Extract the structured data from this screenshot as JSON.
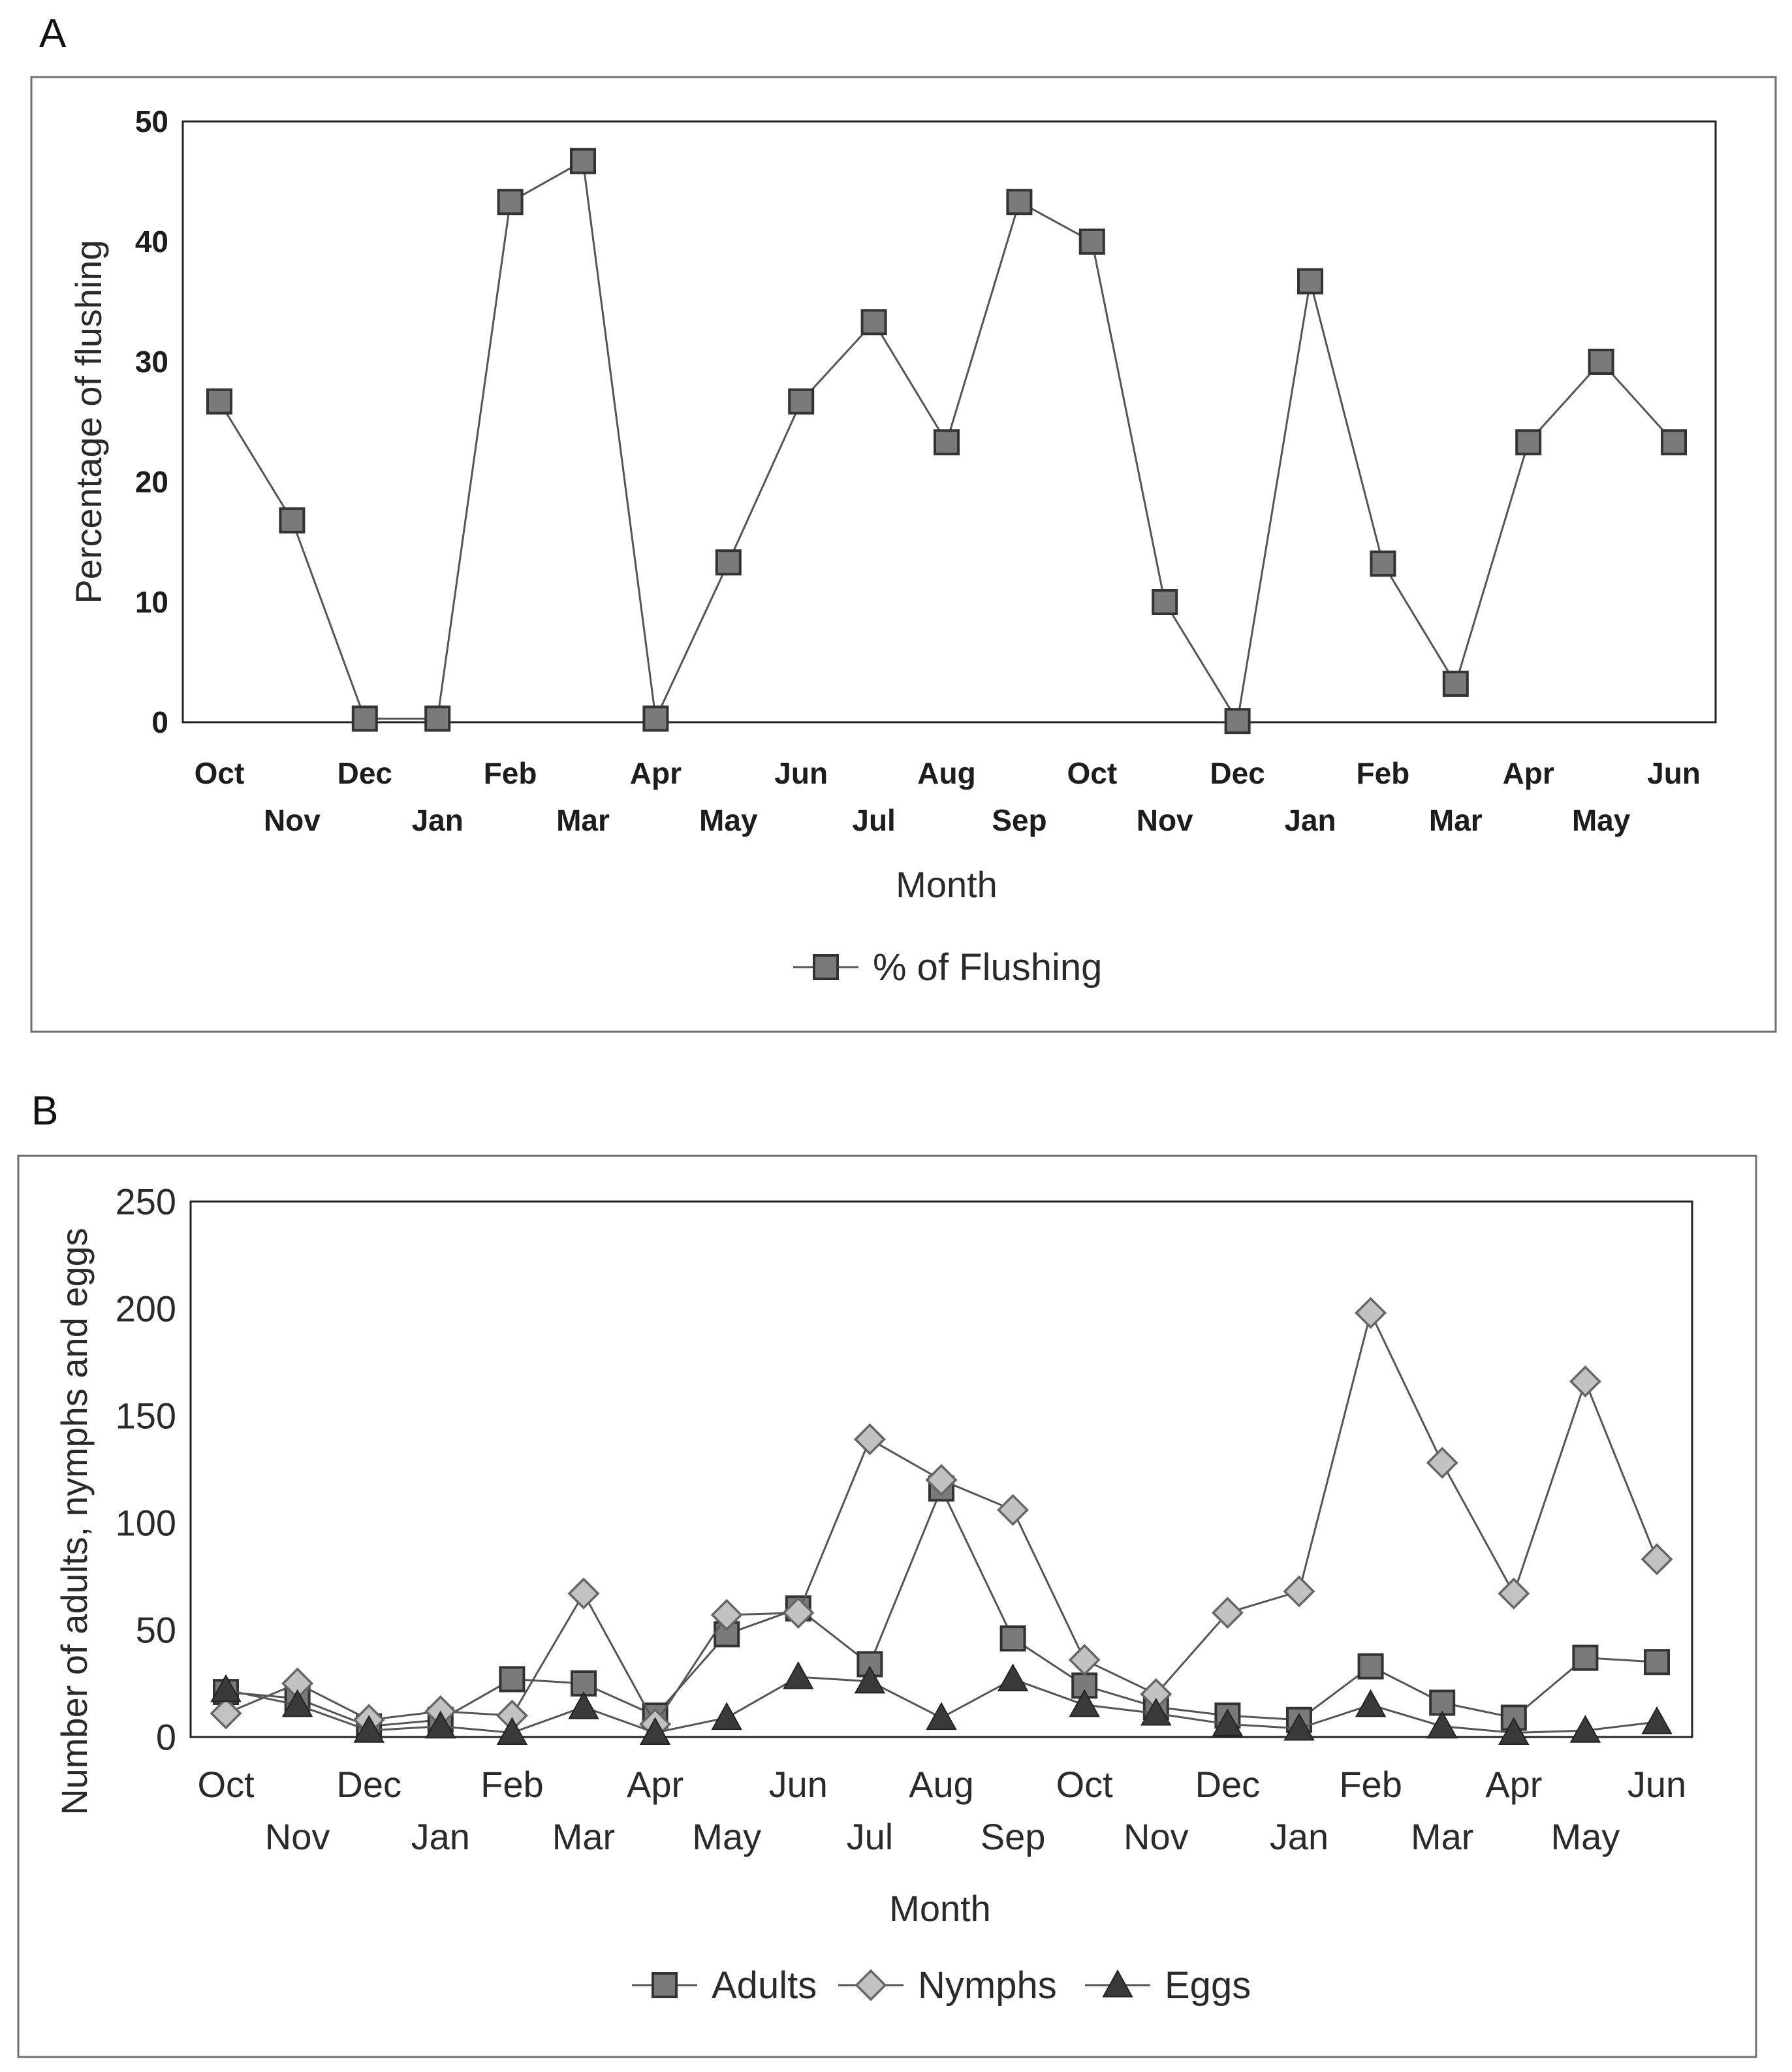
{
  "chart_data": [
    {
      "panel_label": "A",
      "type": "line",
      "title": "",
      "xlabel": "Month",
      "ylabel": "Percentage of flushing",
      "ylim": [
        0,
        50
      ],
      "yticks": [
        "0",
        "10",
        "20",
        "30",
        "40",
        "50"
      ],
      "categories": [
        "Oct",
        "Nov",
        "Dec",
        "Jan",
        "Feb",
        "Mar",
        "Apr",
        "May",
        "Jun",
        "Jul",
        "Aug",
        "Sep",
        "Oct",
        "Nov",
        "Dec",
        "Jan",
        "Feb",
        "Mar",
        "Apr",
        "May",
        "Jun"
      ],
      "legend_position": "bottom-center",
      "series": [
        {
          "name": "% of Flushing",
          "marker": "square",
          "values": [
            26.7,
            16.8,
            0.3,
            0.3,
            43.3,
            46.7,
            0.3,
            13.3,
            26.7,
            33.3,
            23.3,
            43.3,
            40.0,
            10.0,
            0.1,
            36.7,
            13.2,
            3.2,
            23.3,
            30.0,
            23.3
          ]
        }
      ]
    },
    {
      "panel_label": "B",
      "type": "line",
      "title": "",
      "xlabel": "Month",
      "ylabel": "Number of adults, nymphs and eggs",
      "ylim": [
        0,
        250
      ],
      "yticks": [
        "0",
        "50",
        "100",
        "150",
        "200",
        "250"
      ],
      "categories": [
        "Oct",
        "Nov",
        "Dec",
        "Jan",
        "Feb",
        "Mar",
        "Apr",
        "May",
        "Jun",
        "Jul",
        "Aug",
        "Sep",
        "Oct",
        "Nov",
        "Dec",
        "Jan",
        "Feb",
        "Mar",
        "Apr",
        "May",
        "Jun"
      ],
      "legend_position": "bottom-center",
      "series": [
        {
          "name": "Adults",
          "marker": "square",
          "values": [
            21,
            18,
            5,
            8,
            27,
            25,
            10,
            48,
            60,
            34,
            116,
            46,
            24,
            14,
            10,
            8,
            33,
            16,
            9,
            37,
            35
          ]
        },
        {
          "name": "Nymphs",
          "marker": "diamond",
          "values": [
            11,
            25,
            8,
            12,
            10,
            67,
            6,
            57,
            58,
            139,
            120,
            106,
            36,
            20,
            58,
            68,
            198,
            128,
            67,
            166,
            83
          ]
        },
        {
          "name": "Eggs",
          "marker": "triangle",
          "values": [
            22,
            15,
            3,
            5,
            2,
            14,
            2,
            9,
            28,
            26,
            9,
            27,
            15,
            11,
            6,
            4,
            15,
            5,
            2,
            3,
            7
          ]
        }
      ]
    }
  ]
}
